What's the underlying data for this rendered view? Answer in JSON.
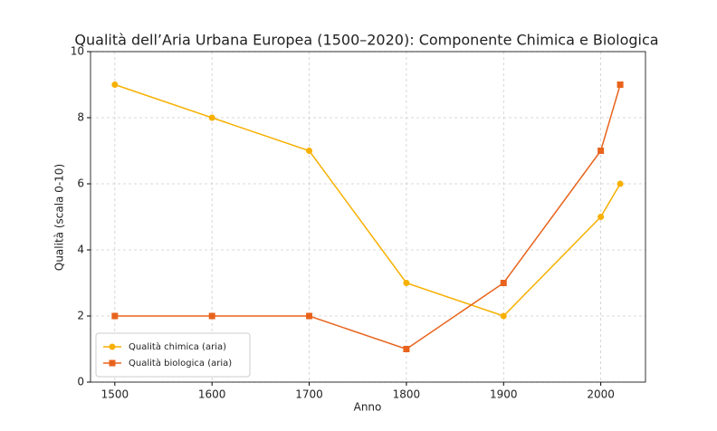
{
  "chart_data": {
    "type": "line",
    "title": "Qualità dell’Aria Urbana Europea (1500–2020): Componente Chimica e Biologica",
    "x_label": "Anno",
    "y_label": "Qualità (scala 0-10)",
    "x": [
      1500,
      1600,
      1700,
      1800,
      1900,
      2000,
      2020
    ],
    "series": [
      {
        "name": "Qualità chimica (aria)",
        "color": "#f7b000",
        "marker": "circle",
        "values": [
          9,
          8,
          7,
          3,
          2,
          5,
          6
        ]
      },
      {
        "name": "Qualità biologica (aria)",
        "color": "#e8631c",
        "marker": "square",
        "values": [
          2,
          2,
          2,
          1,
          3,
          7,
          9
        ]
      }
    ],
    "xlim": [
      1475,
      2046
    ],
    "xticks": [
      1500,
      1600,
      1700,
      1800,
      1900,
      2000
    ],
    "ylim": [
      0,
      10
    ],
    "yticks": [
      0,
      2,
      4,
      6,
      8,
      10
    ],
    "grid": true,
    "legend": "lower left"
  }
}
